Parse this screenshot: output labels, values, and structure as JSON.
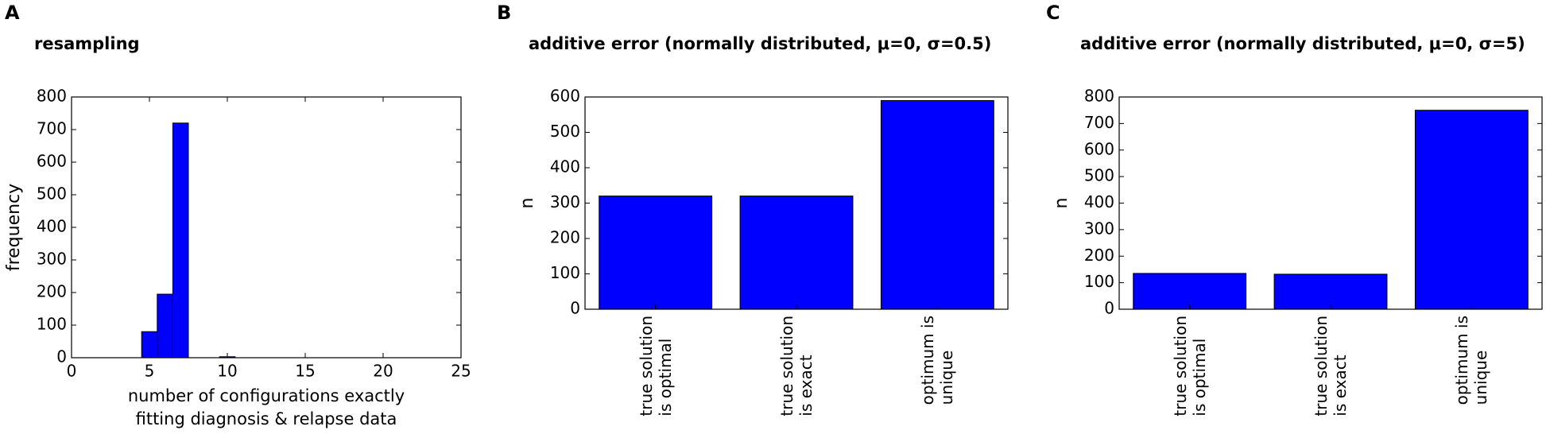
{
  "chart_data": [
    {
      "type": "histogram",
      "panel_label": "A",
      "title": "resampling",
      "xlabel": "number of configurations exactly\nfitting diagnosis & relapse data",
      "ylabel": "frequency",
      "bins": [
        4.5,
        5.5,
        6.5,
        7.5,
        8.5,
        9.5,
        10.5
      ],
      "values": [
        80,
        195,
        720,
        0,
        0,
        3
      ],
      "color": "#0000ff",
      "xlim": [
        0,
        25
      ],
      "xticks": [
        0,
        5,
        10,
        15,
        20,
        25
      ],
      "ylim": [
        0,
        800
      ],
      "yticks": [
        0,
        100,
        200,
        300,
        400,
        500,
        600,
        700,
        800
      ]
    },
    {
      "type": "bar",
      "panel_label": "B",
      "title": "additive error (normally distributed, μ=0, σ=0.5)",
      "ylabel": "n",
      "categories": [
        "true solution\nis optimal",
        "true solution\nis exact",
        "optimum is\nunique"
      ],
      "values": [
        320,
        320,
        590
      ],
      "color": "#0000ff",
      "ylim": [
        0,
        600
      ],
      "yticks": [
        0,
        100,
        200,
        300,
        400,
        500,
        600
      ]
    },
    {
      "type": "bar",
      "panel_label": "C",
      "title": "additive error (normally distributed, μ=0, σ=5)",
      "ylabel": "n",
      "categories": [
        "true solution\nis optimal",
        "true solution\nis exact",
        "optimum is\nunique"
      ],
      "values": [
        135,
        132,
        750
      ],
      "color": "#0000ff",
      "ylim": [
        0,
        800
      ],
      "yticks": [
        0,
        100,
        200,
        300,
        400,
        500,
        600,
        700,
        800
      ]
    }
  ]
}
